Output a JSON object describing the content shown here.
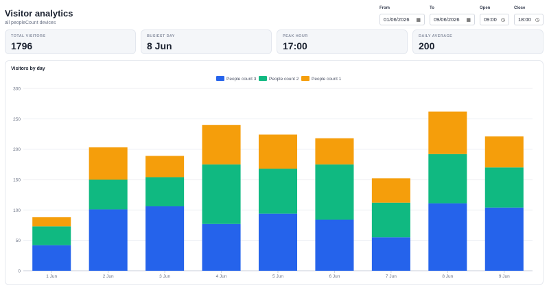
{
  "header": {
    "title": "Visitor analytics",
    "subtitle": "all peopleCount devices"
  },
  "filters": {
    "from_label": "From",
    "from_value": "01/06/2026",
    "to_label": "To",
    "to_value": "09/06/2026",
    "open_label": "Open",
    "open_value": "09:00",
    "close_label": "Close",
    "close_value": "18:00"
  },
  "cards": [
    {
      "label": "TOTAL VISITORS",
      "value": "1796"
    },
    {
      "label": "BUSIEST DAY",
      "value": "8 Jun"
    },
    {
      "label": "PEAK HOUR",
      "value": "17:00"
    },
    {
      "label": "DAILY AVERAGE",
      "value": "200"
    }
  ],
  "chart": {
    "title": "Visitors by day"
  },
  "chart_data": {
    "type": "bar",
    "stacked": true,
    "categories": [
      "1 Jun",
      "2 Jun",
      "3 Jun",
      "4 Jun",
      "5 Jun",
      "6 Jun",
      "7 Jun",
      "8 Jun",
      "9 Jun"
    ],
    "series": [
      {
        "name": "People count 3",
        "color": "#2563eb",
        "values": [
          42,
          101,
          106,
          77,
          94,
          84,
          55,
          111,
          104
        ]
      },
      {
        "name": "People count 2",
        "color": "#10b981",
        "values": [
          31,
          49,
          48,
          98,
          74,
          91,
          57,
          81,
          66
        ]
      },
      {
        "name": "People count 1",
        "color": "#f59e0b",
        "values": [
          15,
          53,
          35,
          65,
          56,
          43,
          40,
          70,
          51
        ]
      }
    ],
    "yticks": [
      0,
      50,
      100,
      150,
      200,
      250,
      300
    ],
    "ylim": [
      0,
      300
    ],
    "legend": "top",
    "grid": true
  }
}
